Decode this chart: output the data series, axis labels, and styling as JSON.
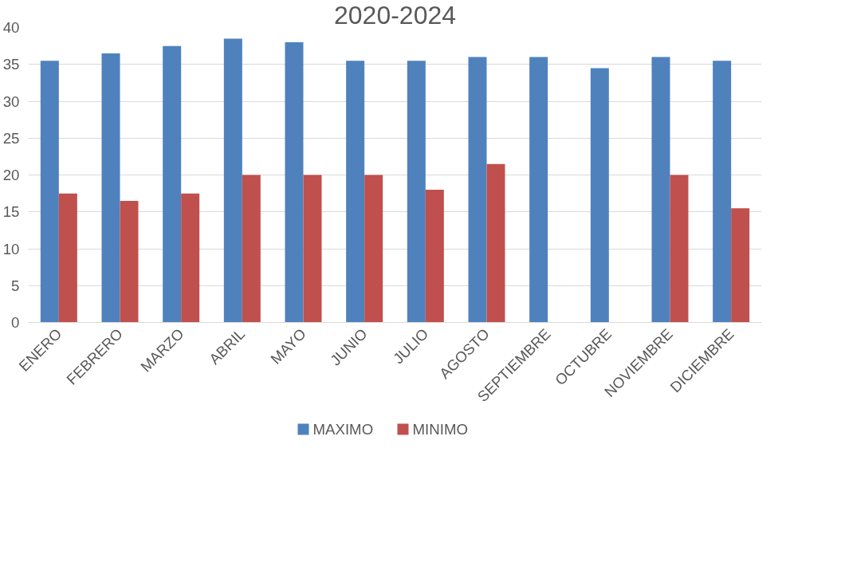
{
  "chart_data": {
    "type": "bar",
    "title": "2020-2024",
    "categories": [
      "ENERO",
      "FEBRERO",
      "MARZO",
      "ABRIL",
      "MAYO",
      "JUNIO",
      "JULIO",
      "AGOSTO",
      "SEPTIEMBRE",
      "OCTUBRE",
      "NOVIEMBRE",
      "DICIEMBRE"
    ],
    "series": [
      {
        "name": "MAXIMO",
        "color": "#4f81bd",
        "values": [
          35.5,
          36.5,
          37.5,
          38.5,
          38,
          35.5,
          35.5,
          36,
          36,
          34.5,
          36,
          35.5
        ]
      },
      {
        "name": "MINIMO",
        "color": "#c0504d",
        "values": [
          17.5,
          16.5,
          17.5,
          20,
          20,
          20,
          18,
          21.5,
          0,
          0,
          20,
          15.5
        ]
      }
    ],
    "ylim": [
      0,
      40
    ],
    "yticks": [
      0,
      5,
      10,
      15,
      20,
      25,
      30,
      35,
      40
    ],
    "grid": "y",
    "legend": "bottom"
  }
}
